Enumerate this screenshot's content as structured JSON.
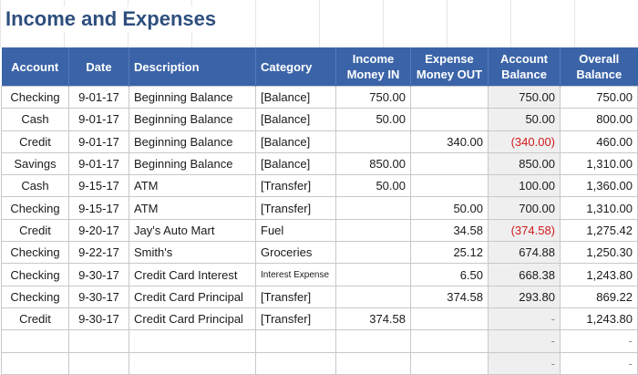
{
  "title": "Income and Expenses",
  "headers": {
    "account": "Account",
    "date": "Date",
    "description": "Description",
    "category": "Category",
    "income_line1": "Income",
    "income_line2": "Money IN",
    "expense_line1": "Expense",
    "expense_line2": "Money OUT",
    "acct_bal_line1": "Account",
    "acct_bal_line2": "Balance",
    "overall_line1": "Overall",
    "overall_line2": "Balance"
  },
  "rows": [
    {
      "account": "Checking",
      "date": "9-01-17",
      "description": "Beginning Balance",
      "category": "[Balance]",
      "income": "750.00",
      "expense": "",
      "account_balance": "750.00",
      "overall_balance": "750.00"
    },
    {
      "account": "Cash",
      "date": "9-01-17",
      "description": "Beginning Balance",
      "category": "[Balance]",
      "income": "50.00",
      "expense": "",
      "account_balance": "50.00",
      "overall_balance": "800.00"
    },
    {
      "account": "Credit",
      "date": "9-01-17",
      "description": "Beginning Balance",
      "category": "[Balance]",
      "income": "",
      "expense": "340.00",
      "account_balance": "(340.00)",
      "overall_balance": "460.00"
    },
    {
      "account": "Savings",
      "date": "9-01-17",
      "description": "Beginning Balance",
      "category": "[Balance]",
      "income": "850.00",
      "expense": "",
      "account_balance": "850.00",
      "overall_balance": "1,310.00"
    },
    {
      "account": "Cash",
      "date": "9-15-17",
      "description": "ATM",
      "category": "[Transfer]",
      "income": "50.00",
      "expense": "",
      "account_balance": "100.00",
      "overall_balance": "1,360.00"
    },
    {
      "account": "Checking",
      "date": "9-15-17",
      "description": "ATM",
      "category": "[Transfer]",
      "income": "",
      "expense": "50.00",
      "account_balance": "700.00",
      "overall_balance": "1,310.00"
    },
    {
      "account": "Credit",
      "date": "9-20-17",
      "description": "Jay's Auto Mart",
      "category": "Fuel",
      "income": "",
      "expense": "34.58",
      "account_balance": "(374.58)",
      "overall_balance": "1,275.42"
    },
    {
      "account": "Checking",
      "date": "9-22-17",
      "description": "Smith's",
      "category": "Groceries",
      "income": "",
      "expense": "25.12",
      "account_balance": "674.88",
      "overall_balance": "1,250.30"
    },
    {
      "account": "Checking",
      "date": "9-30-17",
      "description": "Credit Card Interest",
      "category": "Interest Expense",
      "income": "",
      "expense": "6.50",
      "account_balance": "668.38",
      "overall_balance": "1,243.80"
    },
    {
      "account": "Checking",
      "date": "9-30-17",
      "description": "Credit Card Principal",
      "category": "[Transfer]",
      "income": "",
      "expense": "374.58",
      "account_balance": "293.80",
      "overall_balance": "869.22"
    },
    {
      "account": "Credit",
      "date": "9-30-17",
      "description": "Credit Card Principal",
      "category": "[Transfer]",
      "income": "374.58",
      "expense": "",
      "account_balance": "-",
      "overall_balance": "1,243.80"
    },
    {
      "account": "",
      "date": "",
      "description": "",
      "category": "",
      "income": "",
      "expense": "",
      "account_balance": "-",
      "overall_balance": "-"
    },
    {
      "account": "",
      "date": "",
      "description": "",
      "category": "",
      "income": "",
      "expense": "",
      "account_balance": "-",
      "overall_balance": "-"
    }
  ],
  "colors": {
    "header_bg": "#3b64a8",
    "title_color": "#2e4f7e",
    "negative": "#d11a1a",
    "balance_shade": "#efefef"
  }
}
